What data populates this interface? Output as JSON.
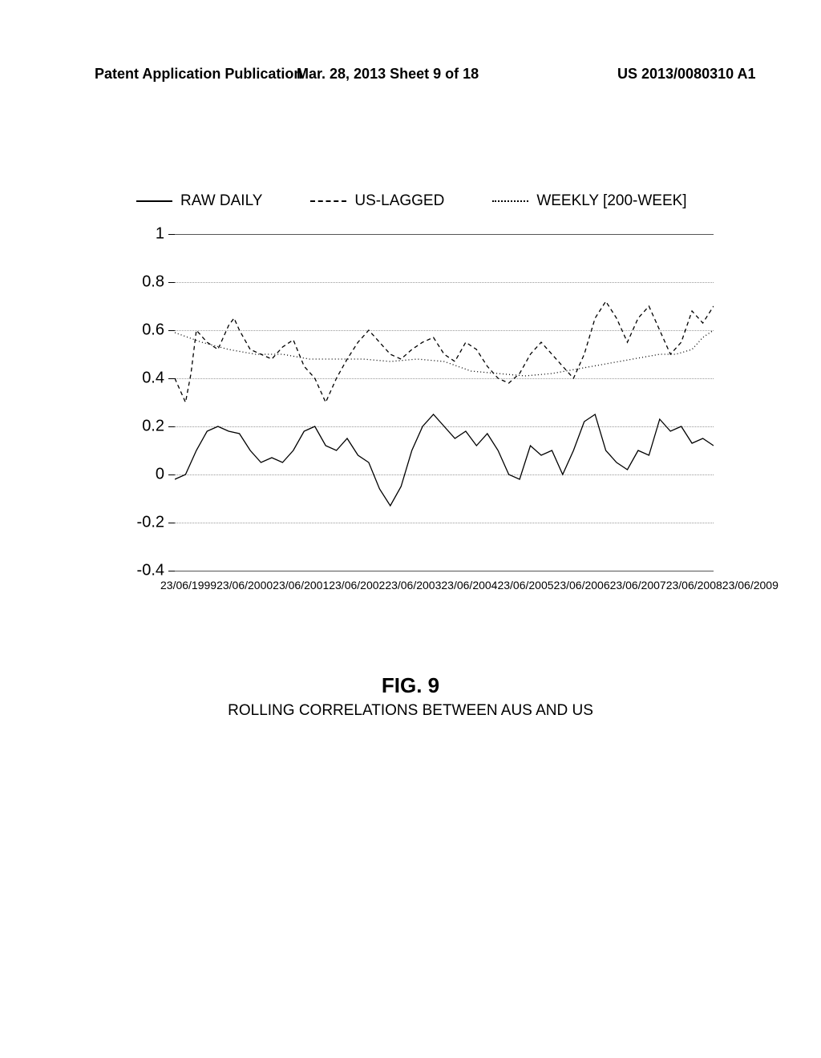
{
  "header": {
    "left": "Patent Application Publication",
    "center": "Mar. 28, 2013  Sheet 9 of 18",
    "right": "US 2013/0080310 A1"
  },
  "legend": {
    "items": [
      {
        "label": "RAW DAILY",
        "style": "solid"
      },
      {
        "label": "US-LAGGED",
        "style": "dashed"
      },
      {
        "label": "WEEKLY [200-WEEK]",
        "style": "dotted"
      }
    ]
  },
  "chart": {
    "type": "line",
    "ylim": [
      -0.4,
      1.0
    ],
    "ytick_step": 0.2,
    "yticks": [
      {
        "v": 1.0,
        "label": "1",
        "solid": true
      },
      {
        "v": 0.8,
        "label": "0.8",
        "solid": false
      },
      {
        "v": 0.6,
        "label": "0.6",
        "solid": false
      },
      {
        "v": 0.4,
        "label": "0.4",
        "solid": false
      },
      {
        "v": 0.2,
        "label": "0.2",
        "solid": false
      },
      {
        "v": 0.0,
        "label": "0",
        "solid": false
      },
      {
        "v": -0.2,
        "label": "-0.2",
        "solid": false
      },
      {
        "v": -0.4,
        "label": "-0.4",
        "solid": true
      }
    ],
    "x_labels": [
      "23/06/1999",
      "23/06/2000",
      "23/06/2001",
      "23/06/2002",
      "23/06/2003",
      "23/06/2004",
      "23/06/2005",
      "23/06/2006",
      "23/06/2007",
      "23/06/2008",
      "23/06/2009"
    ],
    "background_color": "#ffffff",
    "grid_color_dotted": "#999999",
    "grid_color_solid": "#555555",
    "line_color": "#000000",
    "series": {
      "raw_daily": [
        [
          0,
          -0.02
        ],
        [
          0.02,
          0.0
        ],
        [
          0.04,
          0.1
        ],
        [
          0.06,
          0.18
        ],
        [
          0.08,
          0.2
        ],
        [
          0.1,
          0.18
        ],
        [
          0.12,
          0.17
        ],
        [
          0.14,
          0.1
        ],
        [
          0.16,
          0.05
        ],
        [
          0.18,
          0.07
        ],
        [
          0.2,
          0.05
        ],
        [
          0.22,
          0.1
        ],
        [
          0.24,
          0.18
        ],
        [
          0.26,
          0.2
        ],
        [
          0.28,
          0.12
        ],
        [
          0.3,
          0.1
        ],
        [
          0.32,
          0.15
        ],
        [
          0.34,
          0.08
        ],
        [
          0.36,
          0.05
        ],
        [
          0.38,
          -0.06
        ],
        [
          0.4,
          -0.13
        ],
        [
          0.42,
          -0.05
        ],
        [
          0.44,
          0.1
        ],
        [
          0.46,
          0.2
        ],
        [
          0.48,
          0.25
        ],
        [
          0.5,
          0.2
        ],
        [
          0.52,
          0.15
        ],
        [
          0.54,
          0.18
        ],
        [
          0.56,
          0.12
        ],
        [
          0.58,
          0.17
        ],
        [
          0.6,
          0.1
        ],
        [
          0.62,
          0.0
        ],
        [
          0.64,
          -0.02
        ],
        [
          0.66,
          0.12
        ],
        [
          0.68,
          0.08
        ],
        [
          0.7,
          0.1
        ],
        [
          0.72,
          0.0
        ],
        [
          0.74,
          0.1
        ],
        [
          0.76,
          0.22
        ],
        [
          0.78,
          0.25
        ],
        [
          0.8,
          0.1
        ],
        [
          0.82,
          0.05
        ],
        [
          0.84,
          0.02
        ],
        [
          0.86,
          0.1
        ],
        [
          0.88,
          0.08
        ],
        [
          0.9,
          0.23
        ],
        [
          0.92,
          0.18
        ],
        [
          0.94,
          0.2
        ],
        [
          0.96,
          0.13
        ],
        [
          0.98,
          0.15
        ],
        [
          1.0,
          0.12
        ]
      ],
      "us_lagged": [
        [
          0,
          0.4
        ],
        [
          0.02,
          0.3
        ],
        [
          0.03,
          0.42
        ],
        [
          0.04,
          0.6
        ],
        [
          0.06,
          0.55
        ],
        [
          0.08,
          0.52
        ],
        [
          0.1,
          0.62
        ],
        [
          0.11,
          0.65
        ],
        [
          0.12,
          0.6
        ],
        [
          0.14,
          0.52
        ],
        [
          0.16,
          0.5
        ],
        [
          0.18,
          0.48
        ],
        [
          0.2,
          0.53
        ],
        [
          0.22,
          0.56
        ],
        [
          0.24,
          0.45
        ],
        [
          0.26,
          0.4
        ],
        [
          0.28,
          0.3
        ],
        [
          0.3,
          0.4
        ],
        [
          0.32,
          0.48
        ],
        [
          0.34,
          0.55
        ],
        [
          0.36,
          0.6
        ],
        [
          0.38,
          0.55
        ],
        [
          0.4,
          0.5
        ],
        [
          0.42,
          0.48
        ],
        [
          0.44,
          0.52
        ],
        [
          0.46,
          0.55
        ],
        [
          0.48,
          0.57
        ],
        [
          0.5,
          0.5
        ],
        [
          0.52,
          0.47
        ],
        [
          0.54,
          0.55
        ],
        [
          0.56,
          0.52
        ],
        [
          0.58,
          0.45
        ],
        [
          0.6,
          0.4
        ],
        [
          0.62,
          0.38
        ],
        [
          0.64,
          0.42
        ],
        [
          0.66,
          0.5
        ],
        [
          0.68,
          0.55
        ],
        [
          0.7,
          0.5
        ],
        [
          0.72,
          0.45
        ],
        [
          0.74,
          0.4
        ],
        [
          0.76,
          0.5
        ],
        [
          0.78,
          0.65
        ],
        [
          0.8,
          0.72
        ],
        [
          0.82,
          0.65
        ],
        [
          0.84,
          0.55
        ],
        [
          0.86,
          0.65
        ],
        [
          0.88,
          0.7
        ],
        [
          0.9,
          0.6
        ],
        [
          0.92,
          0.5
        ],
        [
          0.94,
          0.55
        ],
        [
          0.96,
          0.68
        ],
        [
          0.98,
          0.63
        ],
        [
          1.0,
          0.7
        ]
      ],
      "weekly": [
        [
          0,
          0.59
        ],
        [
          0.05,
          0.55
        ],
        [
          0.1,
          0.52
        ],
        [
          0.15,
          0.5
        ],
        [
          0.2,
          0.5
        ],
        [
          0.25,
          0.48
        ],
        [
          0.3,
          0.48
        ],
        [
          0.35,
          0.48
        ],
        [
          0.4,
          0.47
        ],
        [
          0.45,
          0.48
        ],
        [
          0.5,
          0.47
        ],
        [
          0.55,
          0.43
        ],
        [
          0.6,
          0.42
        ],
        [
          0.65,
          0.41
        ],
        [
          0.7,
          0.42
        ],
        [
          0.75,
          0.44
        ],
        [
          0.8,
          0.46
        ],
        [
          0.85,
          0.48
        ],
        [
          0.9,
          0.5
        ],
        [
          0.93,
          0.5
        ],
        [
          0.96,
          0.52
        ],
        [
          0.98,
          0.57
        ],
        [
          1.0,
          0.6
        ]
      ]
    }
  },
  "caption": {
    "fig_num": "FIG. 9",
    "title": "ROLLING CORRELATIONS BETWEEN AUS AND US"
  }
}
